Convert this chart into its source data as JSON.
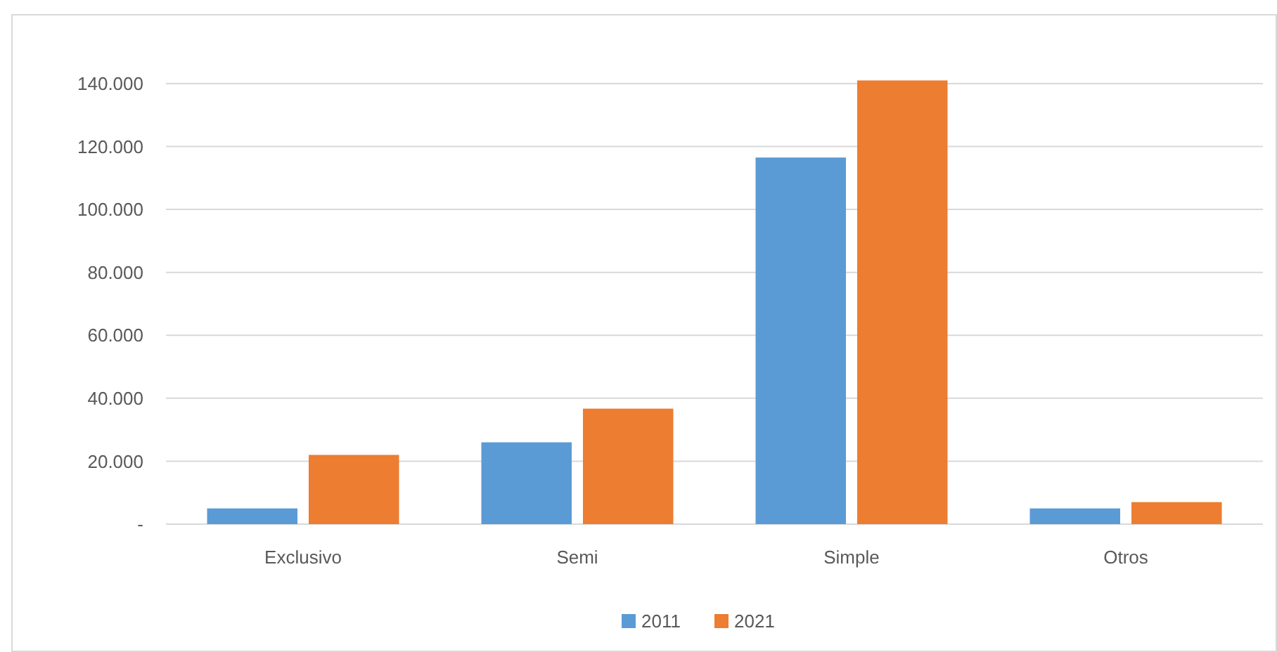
{
  "chart_data": {
    "type": "bar",
    "categories": [
      "Exclusivo",
      "Semi",
      "Simple",
      "Otros"
    ],
    "series": [
      {
        "name": "2011",
        "color": "#5b9bd5",
        "values": [
          5000,
          26000,
          116500,
          5000
        ]
      },
      {
        "name": "2021",
        "color": "#ed7d31",
        "values": [
          22000,
          36700,
          141000,
          7000
        ]
      }
    ],
    "ylim": [
      0,
      142000
    ],
    "yticks": [
      {
        "value": 0,
        "label": "-"
      },
      {
        "value": 20000,
        "label": "20.000"
      },
      {
        "value": 40000,
        "label": "40.000"
      },
      {
        "value": 60000,
        "label": "60.000"
      },
      {
        "value": 80000,
        "label": "80.000"
      },
      {
        "value": 100000,
        "label": "100.000"
      },
      {
        "value": 120000,
        "label": "120.000"
      },
      {
        "value": 140000,
        "label": "140.000"
      }
    ],
    "grid": "y",
    "legend": "bottom"
  }
}
